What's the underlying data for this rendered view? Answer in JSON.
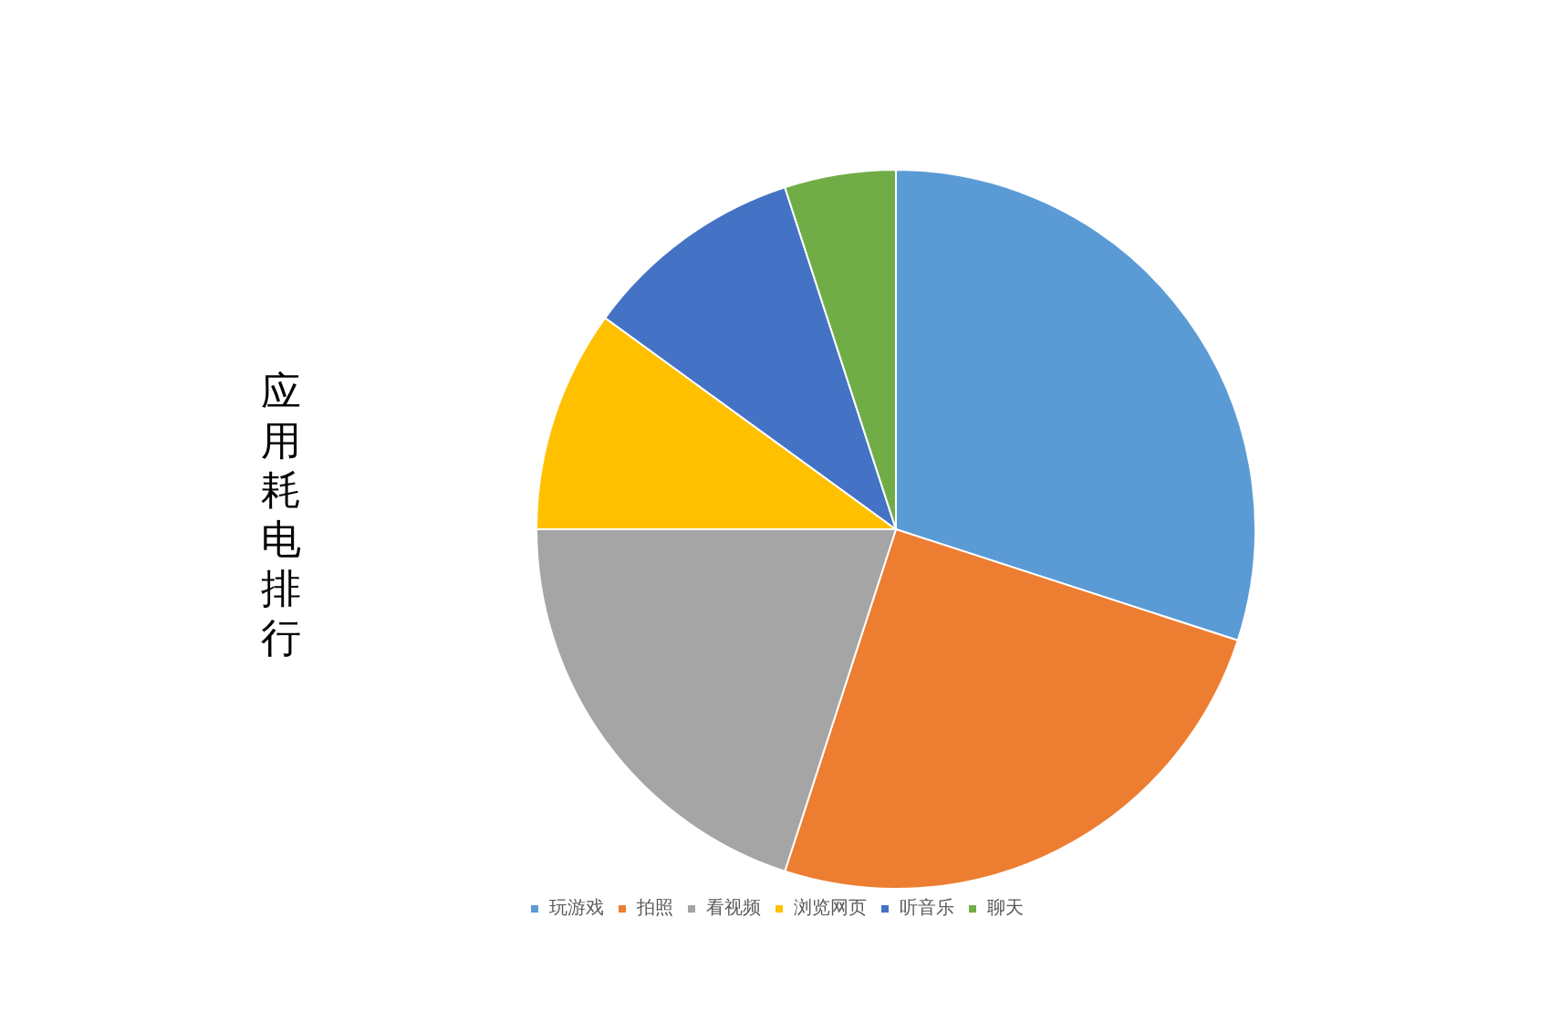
{
  "chart_data": {
    "type": "pie",
    "title": "应用耗电排行",
    "categories": [
      "玩游戏",
      "拍照",
      "看视频",
      "浏览网页",
      "听音乐",
      "聊天"
    ],
    "values": [
      30,
      25,
      20,
      10,
      10,
      5
    ],
    "colors": [
      "#5b9bd5",
      "#ed7d31",
      "#a5a5a5",
      "#ffc000",
      "#4472c4",
      "#70ad47"
    ],
    "legend": "bottom"
  }
}
